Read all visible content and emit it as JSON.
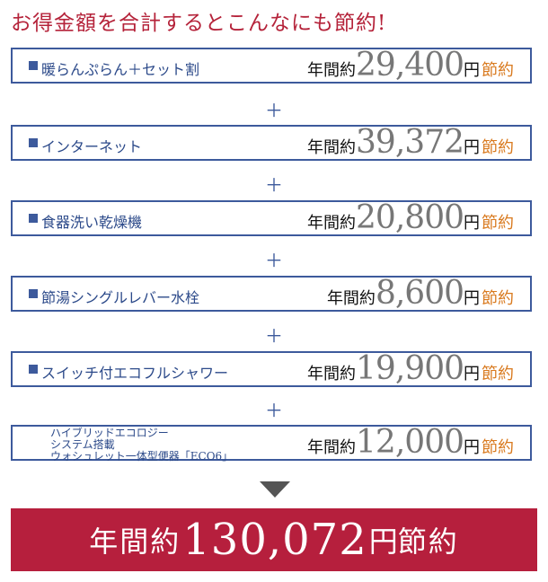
{
  "title": "お得金額を合計するとこんなにも節約!",
  "items": [
    {
      "label": "暖らんぷらん＋セット割",
      "prefix": "年間約",
      "amount": "29,400",
      "yen": "円",
      "suffix": "節約"
    },
    {
      "label": "インターネット",
      "prefix": "年間約",
      "amount": "39,372",
      "yen": "円",
      "suffix": "節約"
    },
    {
      "label": "食器洗い乾燥機",
      "prefix": "年間約",
      "amount": "20,800",
      "yen": "円",
      "suffix": "節約"
    },
    {
      "label": "節湯シングルレバー水栓",
      "prefix": "年間約",
      "amount": "8,600",
      "yen": "円",
      "suffix": "節約"
    },
    {
      "label": "スイッチ付エコフルシャワー",
      "prefix": "年間約",
      "amount": "19,900",
      "yen": "円",
      "suffix": "節約"
    },
    {
      "label_lines": [
        "ハイブリッドエコロジー",
        "システム搭載",
        "ウォシュレット一体型便器「ECO6」"
      ],
      "prefix": "年間約",
      "amount": "12,000",
      "yen": "円",
      "suffix": "節約"
    }
  ],
  "plus_sign": "＋",
  "total": {
    "prefix": "年間約",
    "amount": "130,072",
    "yen": "円",
    "suffix": "節約"
  },
  "colors": {
    "title": "#b5233a",
    "border": "#3d5a9c",
    "orange": "#d97a1f",
    "total_bg": "#b61f3d"
  }
}
